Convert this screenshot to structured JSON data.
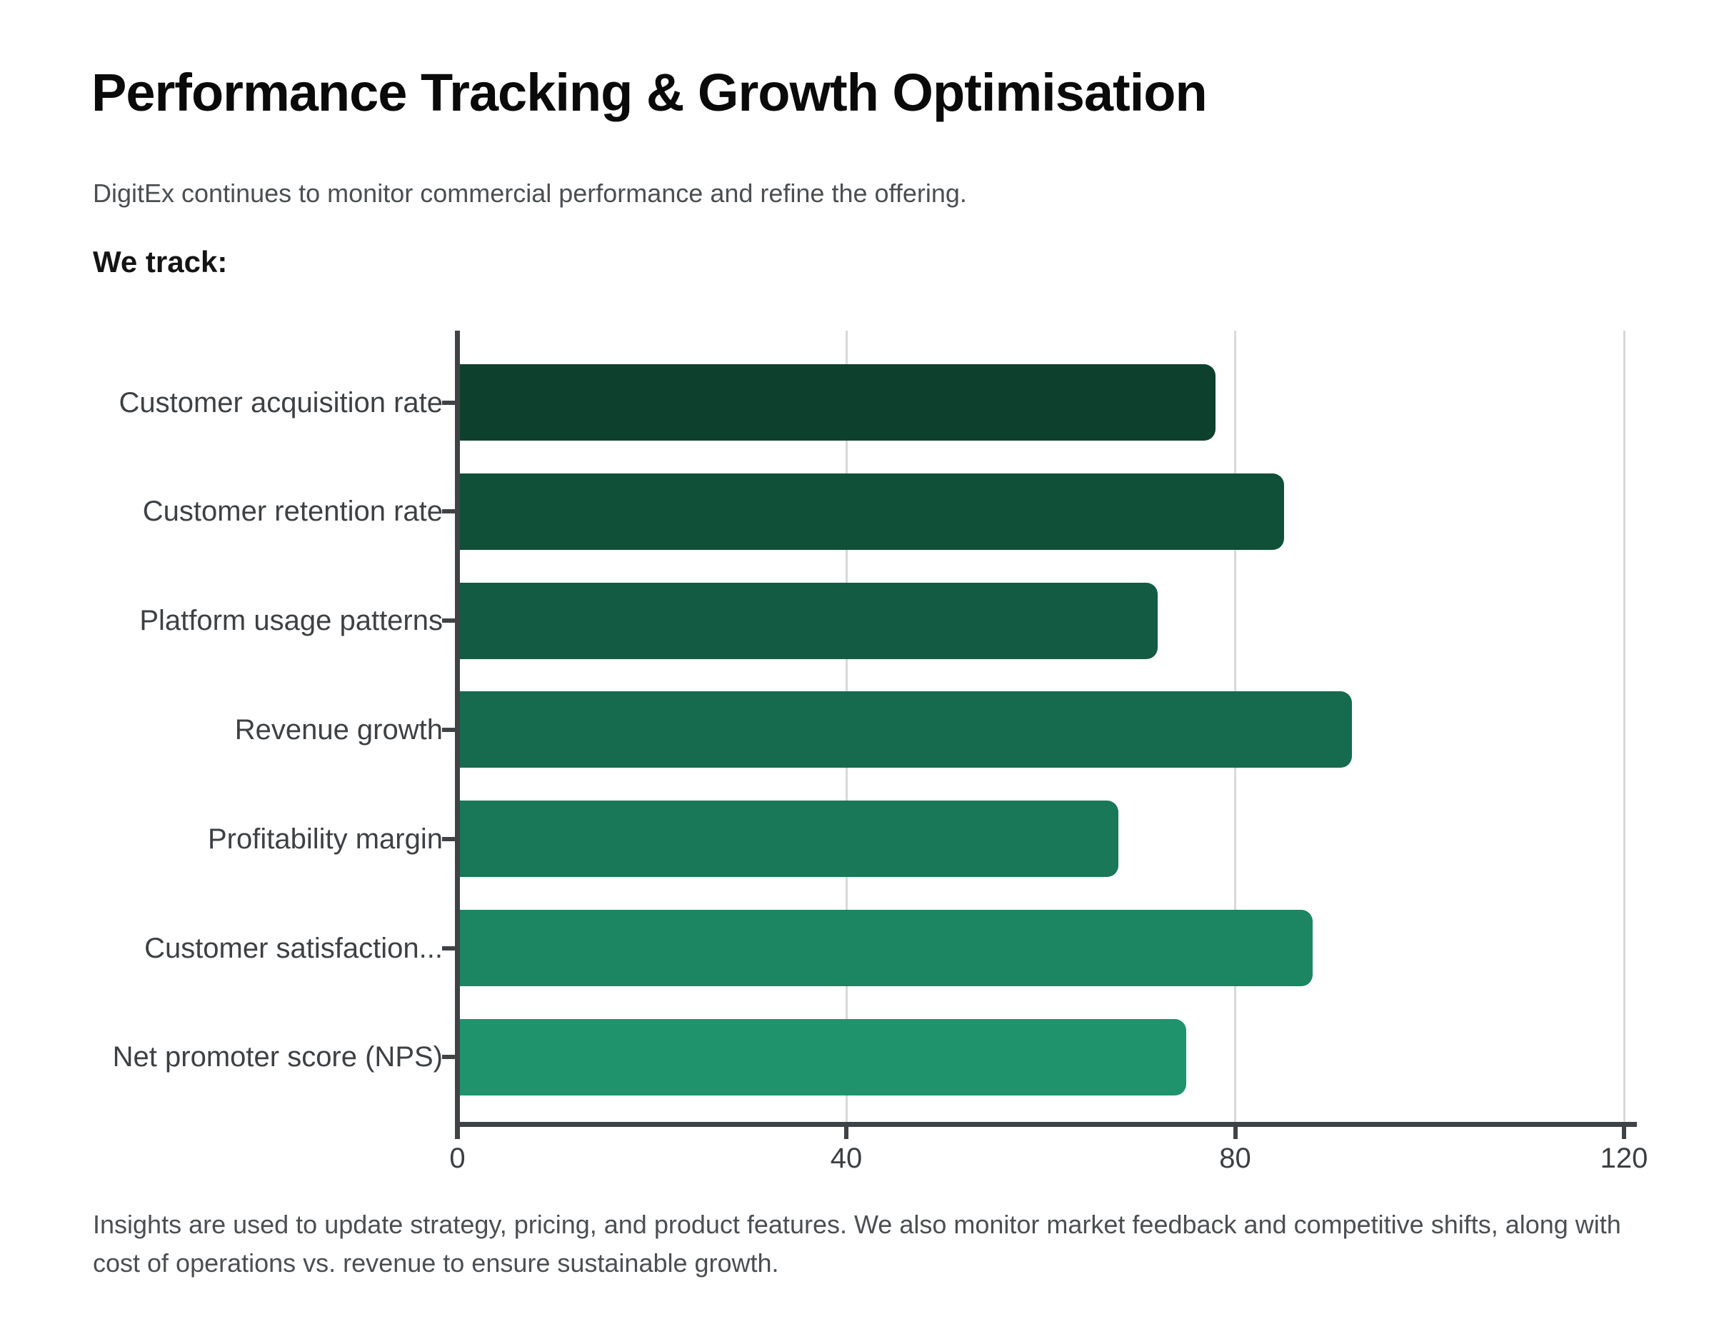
{
  "page": {
    "title": "Performance Tracking & Growth Optimisation",
    "subtitle": "DigitEx continues to monitor commercial performance and refine the offering.",
    "section_heading": "We track:",
    "footer_note": "Insights are used to update strategy, pricing, and product features. We also monitor market feedback and competitive shifts, along with cost of operations vs. revenue to ensure sustainable growth."
  },
  "chart_data": {
    "type": "bar",
    "orientation": "horizontal",
    "title": "",
    "xlabel": "",
    "ylabel": "",
    "categories": [
      "Customer acquisition rate",
      "Customer retention rate",
      "Platform usage patterns",
      "Revenue growth",
      "Profitability margin",
      "Customer satisfaction...",
      "Net promoter score (NPS)"
    ],
    "values": [
      78,
      85,
      72,
      92,
      68,
      88,
      75
    ],
    "bar_colors": [
      "#0d412e",
      "#104f38",
      "#135c43",
      "#166a4d",
      "#197857",
      "#1c8562",
      "#1f936c"
    ],
    "xlim": [
      0,
      120
    ],
    "x_ticks": [
      0,
      40,
      80,
      120
    ],
    "gridlines_at": [
      40,
      80,
      120
    ],
    "grid": "vertical light gray",
    "legend": "none",
    "axis_color": "#404346",
    "gridline_color": "#d8d8d8",
    "label_color": "#3e4144"
  }
}
